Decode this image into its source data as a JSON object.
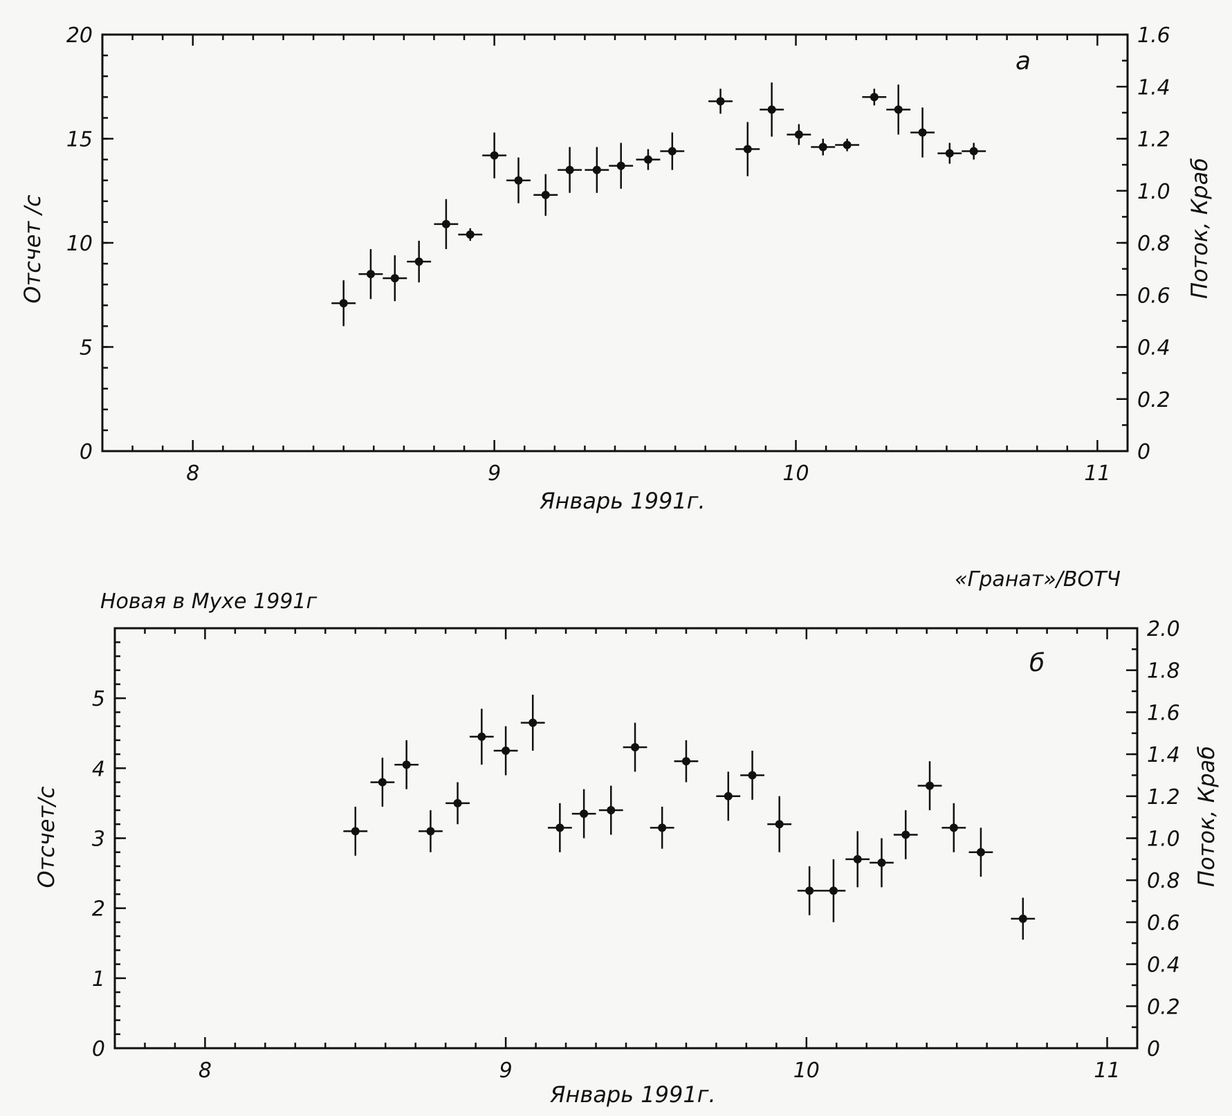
{
  "header": {
    "left_text": "Новая в Мухе 1991г",
    "right_text": "«Гранат»/ВОТЧ"
  },
  "chart_data": [
    {
      "type": "scatter",
      "panel_label": "а",
      "xlabel": "Январь 1991г.",
      "ylabel": "Отсчет /с",
      "ylabel_right": "Поток, Краб",
      "xlim": [
        7.7,
        11.1
      ],
      "ylim": [
        0,
        20
      ],
      "xticks": [
        8,
        9,
        10,
        11
      ],
      "xtick_labels": [
        "8",
        "9",
        "10",
        "11"
      ],
      "yticks": [
        0,
        5,
        10,
        15,
        20
      ],
      "ytick_labels": [
        "0",
        "5",
        "10",
        "15",
        "20"
      ],
      "y2lim": [
        0,
        1.6
      ],
      "y2ticks": [
        0,
        0.2,
        0.4,
        0.6,
        0.8,
        1.0,
        1.2,
        1.4,
        1.6
      ],
      "y2tick_labels": [
        "0",
        "0.2",
        "0.4",
        "0.6",
        "0.8",
        "1.0",
        "1.2",
        "1.4",
        "1.6"
      ],
      "grid": false,
      "points": [
        {
          "x": 8.5,
          "y": 7.1,
          "yerr": 1.1
        },
        {
          "x": 8.59,
          "y": 8.5,
          "yerr": 1.2
        },
        {
          "x": 8.67,
          "y": 8.3,
          "yerr": 1.1
        },
        {
          "x": 8.75,
          "y": 9.1,
          "yerr": 1.0
        },
        {
          "x": 8.84,
          "y": 10.9,
          "yerr": 1.2
        },
        {
          "x": 8.92,
          "y": 10.4,
          "yerr": 0.3
        },
        {
          "x": 9.0,
          "y": 14.2,
          "yerr": 1.1
        },
        {
          "x": 9.08,
          "y": 13.0,
          "yerr": 1.1
        },
        {
          "x": 9.17,
          "y": 12.3,
          "yerr": 1.0
        },
        {
          "x": 9.25,
          "y": 13.5,
          "yerr": 1.1
        },
        {
          "x": 9.34,
          "y": 13.5,
          "yerr": 1.1
        },
        {
          "x": 9.42,
          "y": 13.7,
          "yerr": 1.1
        },
        {
          "x": 9.51,
          "y": 14.0,
          "yerr": 0.5
        },
        {
          "x": 9.59,
          "y": 14.4,
          "yerr": 0.9
        },
        {
          "x": 9.75,
          "y": 16.8,
          "yerr": 0.6
        },
        {
          "x": 9.84,
          "y": 14.5,
          "yerr": 1.3
        },
        {
          "x": 9.92,
          "y": 16.4,
          "yerr": 1.3
        },
        {
          "x": 10.01,
          "y": 15.2,
          "yerr": 0.5
        },
        {
          "x": 10.09,
          "y": 14.6,
          "yerr": 0.4
        },
        {
          "x": 10.17,
          "y": 14.7,
          "yerr": 0.3
        },
        {
          "x": 10.26,
          "y": 17.0,
          "yerr": 0.4
        },
        {
          "x": 10.34,
          "y": 16.4,
          "yerr": 1.2
        },
        {
          "x": 10.42,
          "y": 15.3,
          "yerr": 1.2
        },
        {
          "x": 10.51,
          "y": 14.3,
          "yerr": 0.5
        },
        {
          "x": 10.59,
          "y": 14.4,
          "yerr": 0.4
        }
      ]
    },
    {
      "type": "scatter",
      "panel_label": "б",
      "xlabel": "Январь 1991г.",
      "ylabel": "Отсчет/с",
      "ylabel_right": "Поток, Краб",
      "xlim": [
        7.7,
        11.1
      ],
      "ylim": [
        0,
        6.0
      ],
      "xticks": [
        8,
        9,
        10,
        11
      ],
      "xtick_labels": [
        "8",
        "9",
        "10",
        "11"
      ],
      "yticks": [
        0,
        1,
        2,
        3,
        4,
        5
      ],
      "ytick_labels": [
        "0",
        "1",
        "2",
        "3",
        "4",
        "5"
      ],
      "y2lim": [
        0,
        2.0
      ],
      "y2ticks": [
        0,
        0.2,
        0.4,
        0.6,
        0.8,
        1.0,
        1.2,
        1.4,
        1.6,
        1.8,
        2.0
      ],
      "y2tick_labels": [
        "0",
        "0.2",
        "0.4",
        "0.6",
        "0.8",
        "1.0",
        "1.2",
        "1.4",
        "1.6",
        "1.8",
        "2.0"
      ],
      "grid": false,
      "points": [
        {
          "x": 8.5,
          "y": 3.1,
          "yerr": 0.35
        },
        {
          "x": 8.59,
          "y": 3.8,
          "yerr": 0.35
        },
        {
          "x": 8.67,
          "y": 4.05,
          "yerr": 0.35
        },
        {
          "x": 8.75,
          "y": 3.1,
          "yerr": 0.3
        },
        {
          "x": 8.84,
          "y": 3.5,
          "yerr": 0.3
        },
        {
          "x": 8.92,
          "y": 4.45,
          "yerr": 0.4
        },
        {
          "x": 9.0,
          "y": 4.25,
          "yerr": 0.35
        },
        {
          "x": 9.09,
          "y": 4.65,
          "yerr": 0.4
        },
        {
          "x": 9.18,
          "y": 3.15,
          "yerr": 0.35
        },
        {
          "x": 9.26,
          "y": 3.35,
          "yerr": 0.35
        },
        {
          "x": 9.35,
          "y": 3.4,
          "yerr": 0.35
        },
        {
          "x": 9.43,
          "y": 4.3,
          "yerr": 0.35
        },
        {
          "x": 9.52,
          "y": 3.15,
          "yerr": 0.3
        },
        {
          "x": 9.6,
          "y": 4.1,
          "yerr": 0.3
        },
        {
          "x": 9.74,
          "y": 3.6,
          "yerr": 0.35
        },
        {
          "x": 9.82,
          "y": 3.9,
          "yerr": 0.35
        },
        {
          "x": 9.91,
          "y": 3.2,
          "yerr": 0.4
        },
        {
          "x": 10.01,
          "y": 2.25,
          "yerr": 0.35
        },
        {
          "x": 10.09,
          "y": 2.25,
          "yerr": 0.45
        },
        {
          "x": 10.17,
          "y": 2.7,
          "yerr": 0.4
        },
        {
          "x": 10.25,
          "y": 2.65,
          "yerr": 0.35
        },
        {
          "x": 10.33,
          "y": 3.05,
          "yerr": 0.35
        },
        {
          "x": 10.41,
          "y": 3.75,
          "yerr": 0.35
        },
        {
          "x": 10.49,
          "y": 3.15,
          "yerr": 0.35
        },
        {
          "x": 10.58,
          "y": 2.8,
          "yerr": 0.35
        },
        {
          "x": 10.72,
          "y": 1.85,
          "yerr": 0.3
        }
      ]
    }
  ]
}
